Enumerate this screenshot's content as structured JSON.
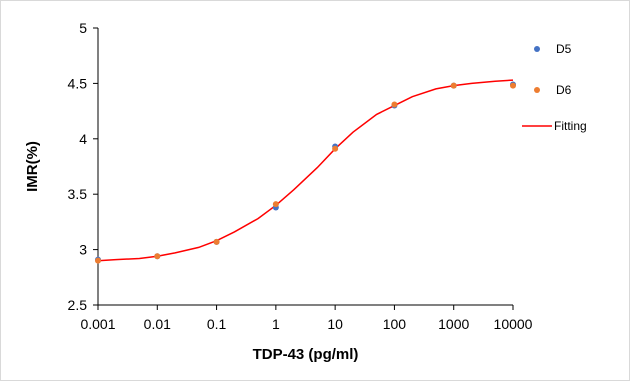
{
  "chart_data": {
    "type": "scatter",
    "xlabel": "TDP-43 (pg/ml)",
    "ylabel": "IMR(%)",
    "xscale": "log",
    "xlim": [
      0.001,
      10000
    ],
    "ylim": [
      2.5,
      5
    ],
    "x_ticks": [
      "0.001",
      "0.01",
      "0.1",
      "1",
      "10",
      "100",
      "1000",
      "10000"
    ],
    "y_ticks": [
      "2.5",
      "3",
      "3.5",
      "4",
      "4.5",
      "5"
    ],
    "grid": false,
    "legend_position": "right",
    "series": [
      {
        "name": "D5",
        "kind": "scatter",
        "color": "#4472c4",
        "x": [
          0.001,
          0.01,
          0.1,
          1,
          10,
          100,
          1000,
          10000
        ],
        "y": [
          2.91,
          2.94,
          3.07,
          3.38,
          3.93,
          4.3,
          4.48,
          4.49
        ]
      },
      {
        "name": "D6",
        "kind": "scatter",
        "color": "#ed7d31",
        "x": [
          0.001,
          0.01,
          0.1,
          1,
          10,
          100,
          1000,
          10000
        ],
        "y": [
          2.9,
          2.94,
          3.07,
          3.41,
          3.91,
          4.31,
          4.48,
          4.48
        ]
      },
      {
        "name": "Fitting",
        "kind": "line",
        "color": "#ff0000",
        "x": [
          0.001,
          0.002,
          0.005,
          0.01,
          0.02,
          0.05,
          0.1,
          0.2,
          0.5,
          1,
          2,
          5,
          10,
          20,
          50,
          100,
          200,
          500,
          1000,
          2000,
          5000,
          10000
        ],
        "y": [
          2.9,
          2.91,
          2.92,
          2.94,
          2.97,
          3.02,
          3.08,
          3.16,
          3.28,
          3.4,
          3.54,
          3.74,
          3.91,
          4.06,
          4.22,
          4.3,
          4.38,
          4.45,
          4.48,
          4.5,
          4.52,
          4.53
        ]
      }
    ]
  }
}
